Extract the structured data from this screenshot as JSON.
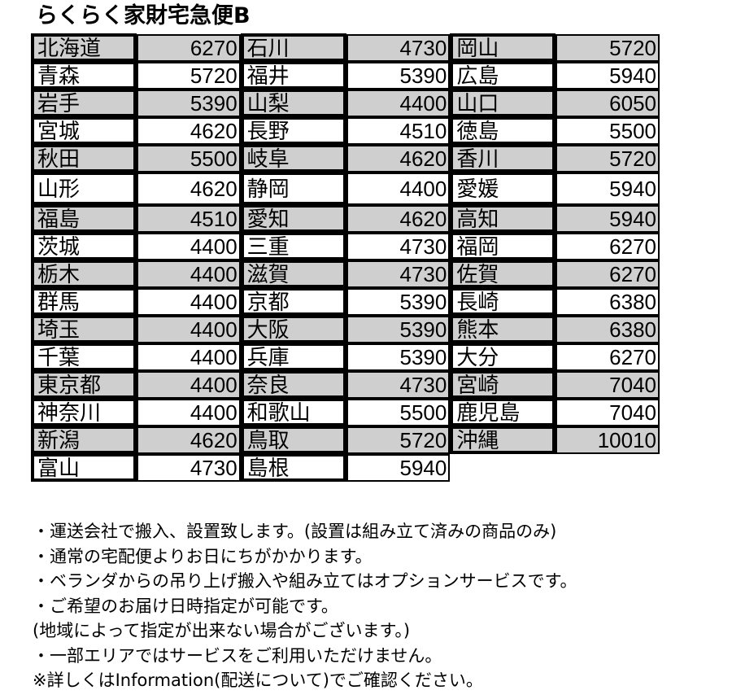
{
  "title": "らくらく家財宅急便B",
  "colors": {
    "shade": "#d0cfd0",
    "border": "#000000"
  },
  "rows": [
    [
      [
        "北海道",
        "6270"
      ],
      [
        "石川",
        "4730"
      ],
      [
        "岡山",
        "5720"
      ]
    ],
    [
      [
        "青森",
        "5720"
      ],
      [
        "福井",
        "5390"
      ],
      [
        "広島",
        "5940"
      ]
    ],
    [
      [
        "岩手",
        "5390"
      ],
      [
        "山梨",
        "4400"
      ],
      [
        "山口",
        "6050"
      ]
    ],
    [
      [
        "宮城",
        "4620"
      ],
      [
        "長野",
        "4510"
      ],
      [
        "徳島",
        "5500"
      ]
    ],
    [
      [
        "秋田",
        "5500"
      ],
      [
        "岐阜",
        "4620"
      ],
      [
        "香川",
        "5720"
      ]
    ],
    [
      [
        "山形",
        "4620"
      ],
      [
        "静岡",
        "4400"
      ],
      [
        "愛媛",
        "5940"
      ]
    ],
    [
      [
        "福島",
        "4510"
      ],
      [
        "愛知",
        "4620"
      ],
      [
        "高知",
        "5940"
      ]
    ],
    [
      [
        "茨城",
        "4400"
      ],
      [
        "三重",
        "4730"
      ],
      [
        "福岡",
        "6270"
      ]
    ],
    [
      [
        "栃木",
        "4400"
      ],
      [
        "滋賀",
        "4730"
      ],
      [
        "佐賀",
        "6270"
      ]
    ],
    [
      [
        "群馬",
        "4400"
      ],
      [
        "京都",
        "5390"
      ],
      [
        "長崎",
        "6380"
      ]
    ],
    [
      [
        "埼玉",
        "4400"
      ],
      [
        "大阪",
        "5390"
      ],
      [
        "熊本",
        "6380"
      ]
    ],
    [
      [
        "千葉",
        "4400"
      ],
      [
        "兵庫",
        "5390"
      ],
      [
        "大分",
        "6270"
      ]
    ],
    [
      [
        "東京都",
        "4400"
      ],
      [
        "奈良",
        "4730"
      ],
      [
        "宮崎",
        "7040"
      ]
    ],
    [
      [
        "神奈川",
        "4400"
      ],
      [
        "和歌山",
        "5500"
      ],
      [
        "鹿児島",
        "7040"
      ]
    ],
    [
      [
        "新潟",
        "4620"
      ],
      [
        "鳥取",
        "5720"
      ],
      [
        "沖縄",
        "10010"
      ]
    ],
    [
      [
        "富山",
        "4730"
      ],
      [
        "島根",
        "5940"
      ]
    ]
  ],
  "notes": [
    "・運送会社で搬入、設置致します。(設置は組み立て済みの商品のみ)",
    "・通常の宅配便よりお日にちがかかります。",
    "・ベランダからの吊り上げ搬入や組み立てはオプションサービスです。",
    "・ご希望のお届け日時指定が可能です。",
    "(地域によって指定が出来ない場合がございます。)",
    "・一部エリアではサービスをご利用いただけません。",
    "※詳しくはInformation(配送について)でご確認ください。"
  ]
}
